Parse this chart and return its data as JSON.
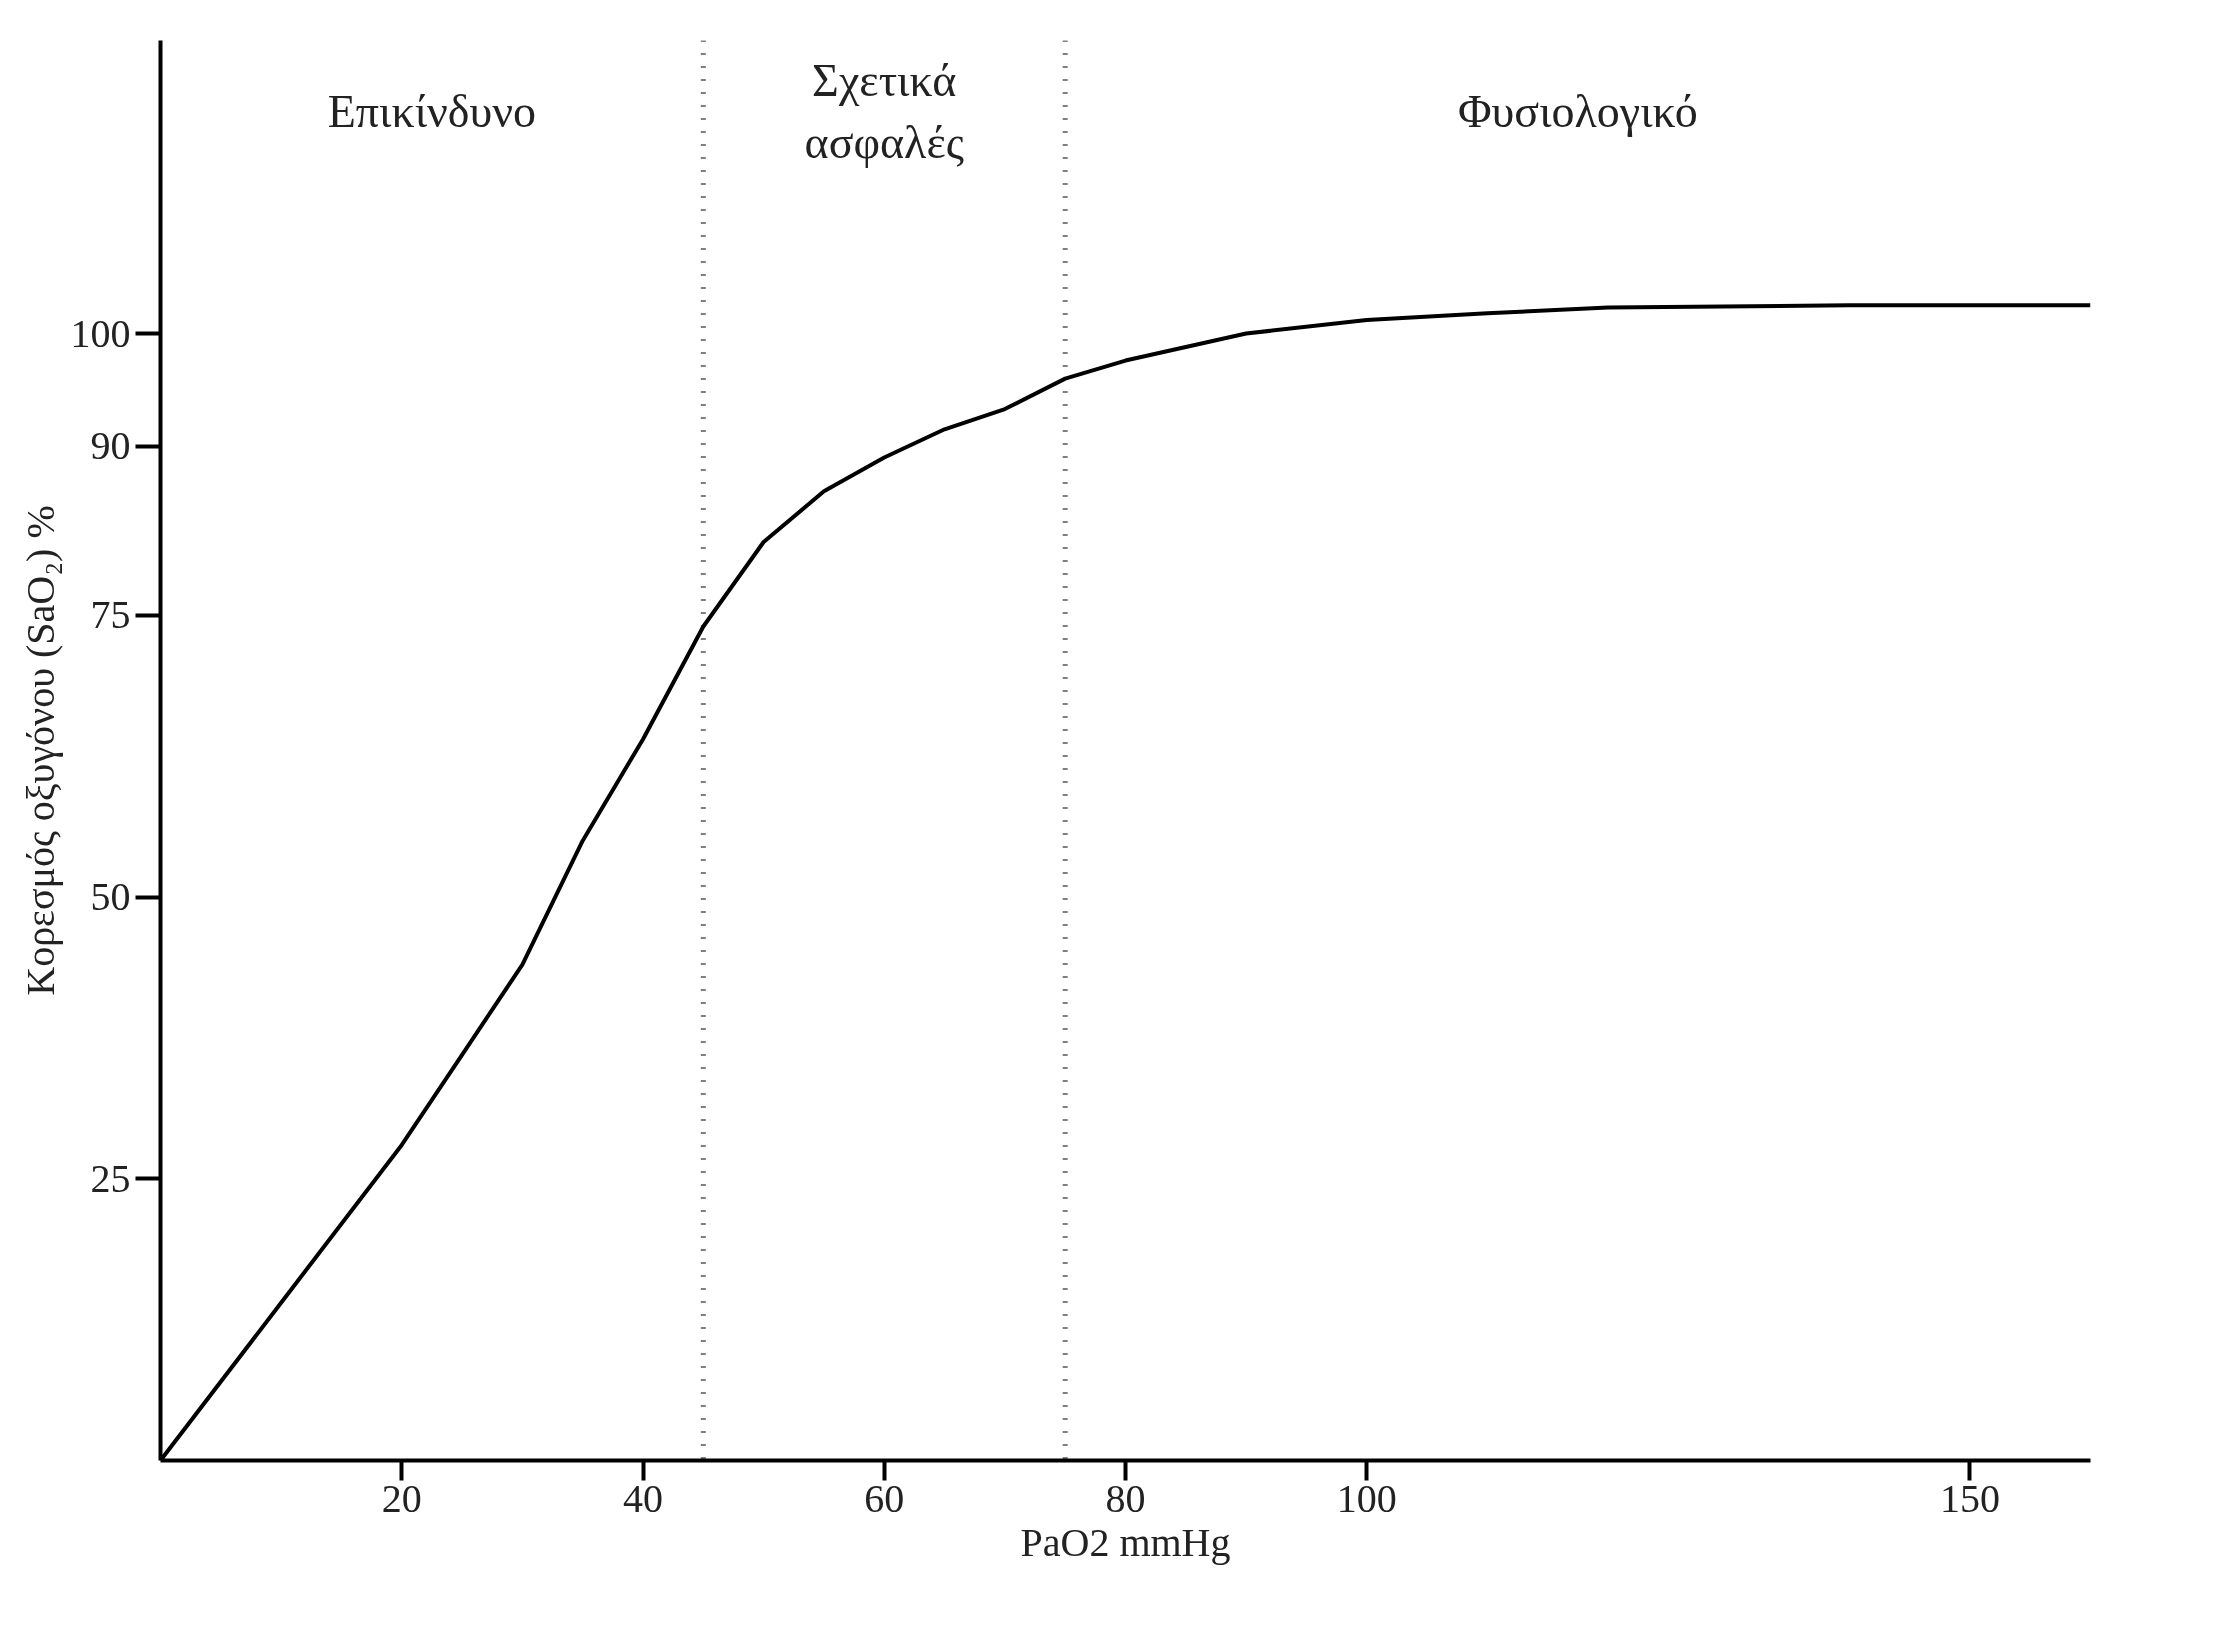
{
  "chart_data": {
    "type": "line",
    "xlabel": "PaO2 mmHg",
    "ylabel": "Κορεσμός οξυγόνου (SaO₂) %",
    "x": [
      0,
      10,
      20,
      25,
      30,
      35,
      40,
      45,
      50,
      55,
      60,
      65,
      70,
      75,
      80,
      90,
      100,
      110,
      120,
      140,
      160
    ],
    "series": [
      {
        "color": "#000000",
        "values": [
          0,
          14,
          28,
          36,
          44,
          55,
          64,
          74,
          81.5,
          86,
          89,
          91.5,
          93.3,
          96,
          97.6,
          100,
          101.2,
          101.8,
          102.3,
          102.5,
          102.5
        ]
      }
    ],
    "xlim": [
      0,
      160
    ],
    "ylim": [
      0,
      126
    ],
    "xticks": [
      20,
      40,
      60,
      80,
      100,
      150
    ],
    "yticks": [
      25,
      50,
      75,
      90,
      100
    ],
    "ref_lines": [
      {
        "axis": "x",
        "value": 45,
        "line_style": "dotted",
        "color": "#000000"
      },
      {
        "axis": "x",
        "value": 75,
        "line_style": "dotted",
        "color": "#000000"
      }
    ],
    "annotations": [
      "Επικίνδυνο",
      "Σχετικά\nασφαλές",
      "Φυσιολογικό"
    ],
    "grid": false,
    "line_style": "solid",
    "marker": "none"
  }
}
